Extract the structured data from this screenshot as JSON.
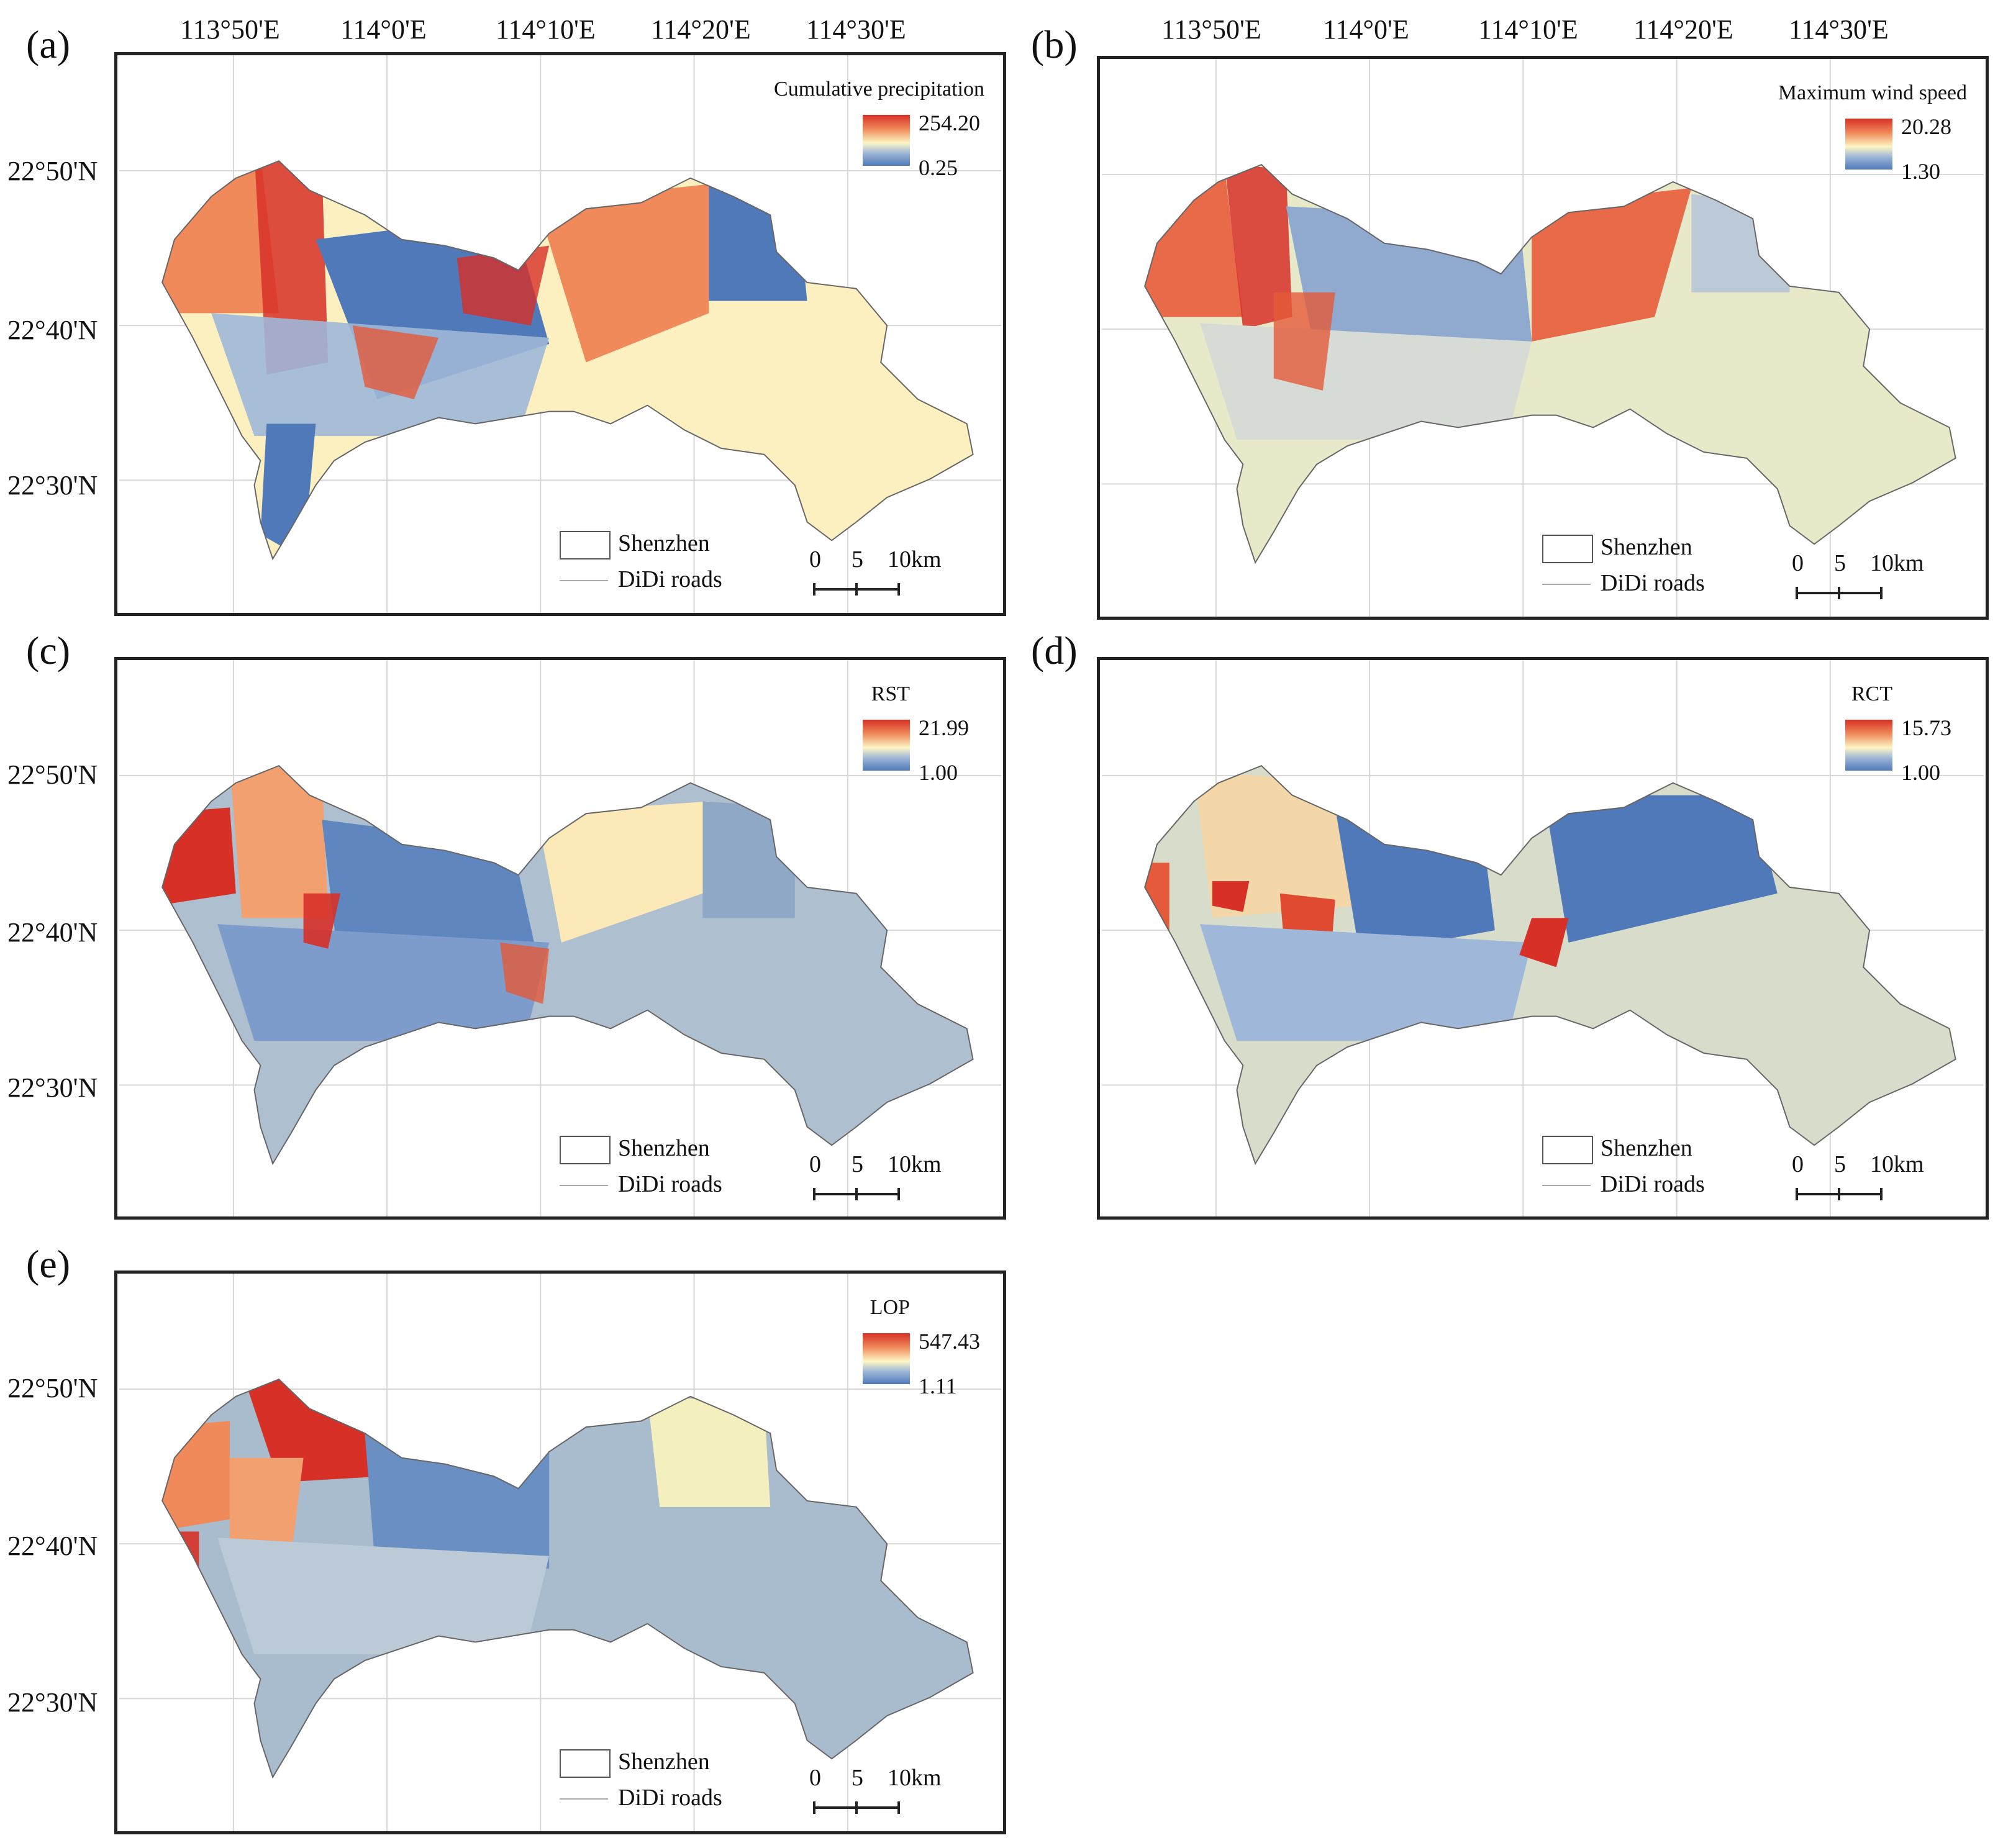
{
  "longitude_labels": [
    "113°50'E",
    "114°0'E",
    "114°10'E",
    "114°20'E",
    "114°30'E"
  ],
  "latitude_labels": [
    "22°50'N",
    "22°40'N",
    "22°30'N"
  ],
  "legend": {
    "shenzhen": "Shenzhen",
    "roads": "DiDi roads"
  },
  "scale_bar": {
    "zero": "0",
    "five": "5",
    "ten": "10km"
  },
  "panels": [
    {
      "label": "(a)",
      "title": "Cumulative precipitation",
      "max": "254.20",
      "min": "0.25"
    },
    {
      "label": "(b)",
      "title": "Maximum wind speed",
      "max": "20.28",
      "min": "1.30"
    },
    {
      "label": "(c)",
      "title": "RST",
      "max": "21.99",
      "min": "1.00"
    },
    {
      "label": "(d)",
      "title": "RCT",
      "max": "15.73",
      "min": "1.00"
    },
    {
      "label": "(e)",
      "title": "LOP",
      "max": "547.43",
      "min": "1.11"
    }
  ],
  "colors": {
    "high": "#d73027",
    "mid_high": "#f08a5a",
    "mid": "#fdf6c4",
    "mid_low": "#9fb7d8",
    "low": "#4f79b8",
    "neutral": "#c8d3cf"
  }
}
